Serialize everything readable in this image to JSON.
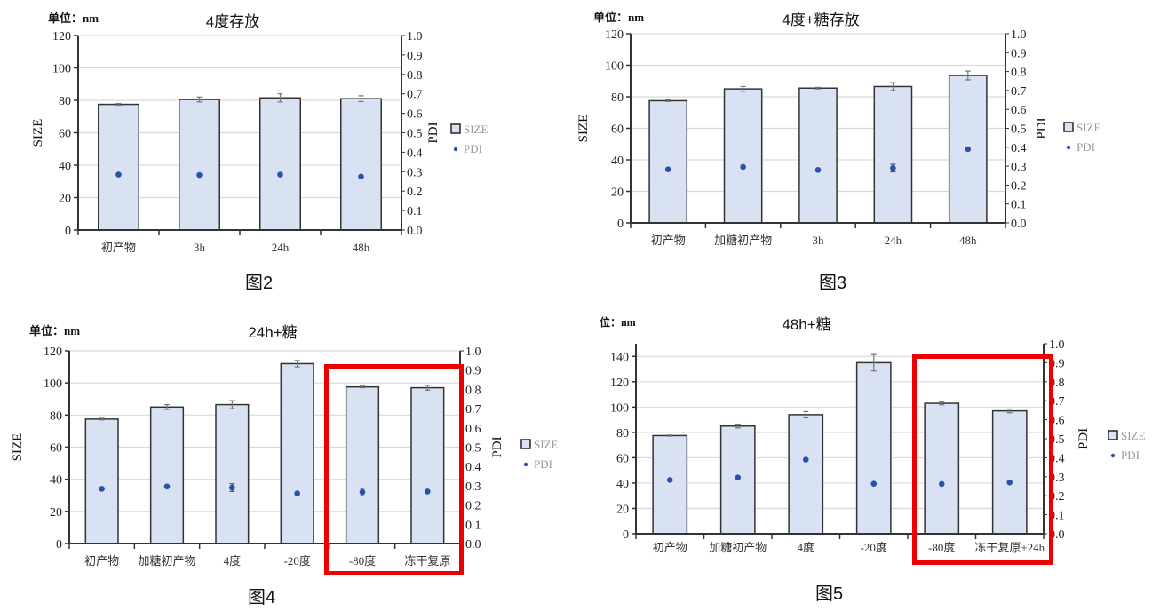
{
  "figures": [
    {
      "caption": "图2",
      "unit_label": "单位：nm"
    },
    {
      "caption": "图3",
      "unit_label": "单位：nm"
    },
    {
      "caption": "图4",
      "unit_label": "单位：nm"
    },
    {
      "caption": "图5",
      "unit_label": "位：nm"
    }
  ],
  "legend": {
    "size_label": "SIZE",
    "pdi_label": "PDI"
  },
  "colors": {
    "bar_fill": "#d9e2f3",
    "bar_stroke": "#333333",
    "pdi_point": "#2a52a8",
    "grid": "#d9d9d9",
    "highlight_box": "#ee0000",
    "error_bar": "#777777"
  },
  "chart_data": [
    {
      "type": "bar",
      "title": "4度存放",
      "xlabel": "",
      "ylabel": "SIZE",
      "y2label": "PDI",
      "ylim": [
        0,
        120
      ],
      "y2lim": [
        0,
        1.0
      ],
      "yticks": [
        0,
        20,
        40,
        60,
        80,
        100,
        120
      ],
      "y2ticks": [
        "0.0",
        "0.1",
        "0.2",
        "0.3",
        "0.4",
        "0.5",
        "0.6",
        "0.7",
        "0.8",
        "0.9",
        "1.0"
      ],
      "categories": [
        "初产物",
        "3h",
        "24h",
        "48h"
      ],
      "series": [
        {
          "name": "SIZE",
          "kind": "bar",
          "axis": "left",
          "values": [
            77.5,
            80.5,
            81.5,
            81.0
          ],
          "errors": [
            0.5,
            1.5,
            2.5,
            1.8
          ]
        },
        {
          "name": "PDI",
          "kind": "scatter",
          "axis": "right",
          "values": [
            0.285,
            0.283,
            0.285,
            0.275
          ],
          "errors": [
            0,
            0,
            0,
            0
          ]
        }
      ],
      "grid": true,
      "legend_position": "right"
    },
    {
      "type": "bar",
      "title": "4度+糖存放",
      "xlabel": "",
      "ylabel": "SIZE",
      "y2label": "PDI",
      "ylim": [
        0,
        120
      ],
      "y2lim": [
        0,
        1.0
      ],
      "yticks": [
        0,
        20,
        40,
        60,
        80,
        100,
        120
      ],
      "y2ticks": [
        "0.0",
        "0.1",
        "0.2",
        "0.3",
        "0.4",
        "0.5",
        "0.6",
        "0.7",
        "0.8",
        "0.9",
        "1.0"
      ],
      "categories": [
        "初产物",
        "加糖初产物",
        "3h",
        "24h",
        "48h"
      ],
      "series": [
        {
          "name": "SIZE",
          "kind": "bar",
          "axis": "left",
          "values": [
            77.5,
            85.0,
            85.5,
            86.5,
            93.5
          ],
          "errors": [
            0.5,
            1.5,
            0.5,
            2.5,
            2.8
          ]
        },
        {
          "name": "PDI",
          "kind": "scatter",
          "axis": "right",
          "values": [
            0.283,
            0.296,
            0.28,
            0.29,
            0.39
          ],
          "errors": [
            0,
            0,
            0,
            0.02,
            0
          ]
        }
      ],
      "grid": true,
      "legend_position": "right"
    },
    {
      "type": "bar",
      "title": "24h+糖",
      "xlabel": "",
      "ylabel": "SIZE",
      "y2label": "PDI",
      "ylim": [
        0,
        120
      ],
      "y2lim": [
        0,
        1.0
      ],
      "yticks": [
        0,
        20,
        40,
        60,
        80,
        100,
        120
      ],
      "y2ticks": [
        "0.0",
        "0.1",
        "0.2",
        "0.3",
        "0.4",
        "0.5",
        "0.6",
        "0.7",
        "0.8",
        "0.9",
        "1.0"
      ],
      "categories": [
        "初产物",
        "加糖初产物",
        "4度",
        "-20度",
        "-80度",
        "冻干复原"
      ],
      "series": [
        {
          "name": "SIZE",
          "kind": "bar",
          "axis": "left",
          "values": [
            77.5,
            85.0,
            86.5,
            112.0,
            97.5,
            97.0
          ],
          "errors": [
            0.5,
            1.5,
            2.5,
            2.0,
            0.5,
            1.5
          ]
        },
        {
          "name": "PDI",
          "kind": "scatter",
          "axis": "right",
          "values": [
            0.284,
            0.296,
            0.29,
            0.26,
            0.267,
            0.27
          ],
          "errors": [
            0,
            0,
            0.02,
            0,
            0.02,
            0
          ]
        }
      ],
      "highlight": [
        "-80度",
        "冻干复原"
      ],
      "grid": true,
      "legend_position": "right"
    },
    {
      "type": "bar",
      "title": "48h+糖",
      "xlabel": "",
      "ylabel": "",
      "y2label": "PDI",
      "ylim": [
        0,
        150
      ],
      "y2lim": [
        0,
        1.0
      ],
      "yticks": [
        0,
        20,
        40,
        60,
        80,
        100,
        120,
        140
      ],
      "y2ticks": [
        "0.0",
        "0.1",
        "0.2",
        "0.3",
        "0.4",
        "0.5",
        "0.6",
        "0.7",
        "0.8",
        "0.9",
        "1.0"
      ],
      "categories": [
        "初产物",
        "加糖初产物",
        "4度",
        "-20度",
        "-80度",
        "冻干复原+24h"
      ],
      "series": [
        {
          "name": "SIZE",
          "kind": "bar",
          "axis": "left",
          "values": [
            77.5,
            85.0,
            94.0,
            135.0,
            103.0,
            97.0
          ],
          "errors": [
            0.5,
            1.5,
            2.5,
            6.5,
            1.2,
            1.5
          ]
        },
        {
          "name": "PDI",
          "kind": "scatter",
          "axis": "right",
          "values": [
            0.283,
            0.296,
            0.39,
            0.263,
            0.262,
            0.27
          ],
          "errors": [
            0,
            0,
            0,
            0,
            0,
            0
          ]
        }
      ],
      "highlight": [
        "-80度",
        "冻干复原+24h"
      ],
      "grid": true,
      "legend_position": "right"
    }
  ]
}
